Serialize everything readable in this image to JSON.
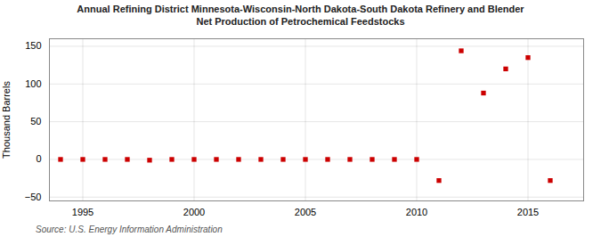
{
  "chart_data": {
    "type": "scatter",
    "title": "Annual Refining District Minnesota-Wisconsin-North Dakota-South Dakota Refinery and Blender",
    "subtitle": "Net Production of Petrochemical Feedstocks",
    "ylabel": "Thousand Barrels",
    "annotations": [
      "Source: U.S. Energy Information Administration"
    ],
    "x": [
      1994,
      1995,
      1996,
      1997,
      1998,
      1999,
      2000,
      2001,
      2002,
      2003,
      2004,
      2005,
      2006,
      2007,
      2008,
      2009,
      2010,
      2011,
      2012,
      2013,
      2014,
      2015,
      2016
    ],
    "values": [
      0,
      0,
      0,
      0,
      -1,
      0,
      0,
      0,
      0,
      0,
      0,
      0,
      0,
      0,
      0,
      0,
      0,
      -28,
      144,
      88,
      120,
      135,
      -28
    ],
    "color": "#cc0000",
    "marker": "square",
    "xlim": [
      1993.5,
      2017.5
    ],
    "xticks": [
      1995,
      2000,
      2005,
      2010,
      2015
    ],
    "ylim": [
      -55,
      160
    ],
    "yticks": [
      -50,
      0,
      50,
      100,
      150
    ],
    "grid": true
  }
}
